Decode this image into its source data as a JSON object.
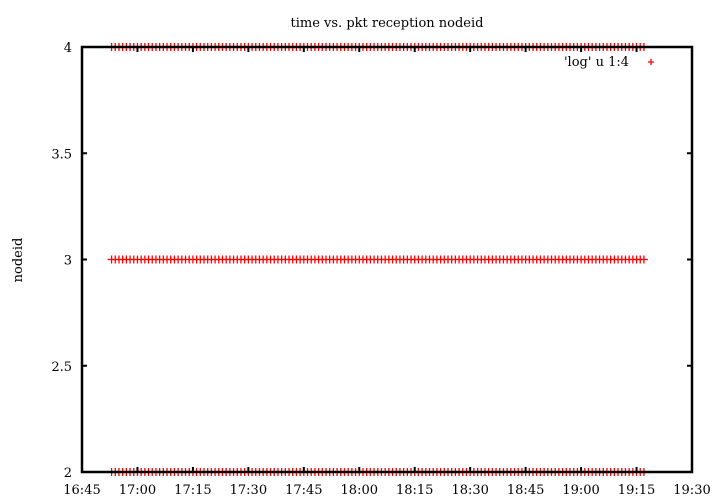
{
  "chart_data": {
    "type": "scatter",
    "title": "time vs. pkt reception nodeid",
    "xlabel": "",
    "ylabel": "nodeid",
    "x_ticks": [
      "16:45",
      "17:00",
      "17:15",
      "17:30",
      "17:45",
      "18:00",
      "18:15",
      "18:30",
      "18:45",
      "19:00",
      "19:15",
      "19:30"
    ],
    "y_ticks": [
      "2",
      "2.5",
      "3",
      "3.5",
      "4"
    ],
    "xlim": [
      "16:45",
      "19:30"
    ],
    "ylim": [
      2,
      4
    ],
    "grid": false,
    "legend_position": "top-right",
    "series": [
      {
        "name": "'log' u 1:4",
        "color": "#ff0000",
        "marker": "plus",
        "segments": [
          {
            "y": 4,
            "x_start": "16:53",
            "x_end": "19:17"
          },
          {
            "y": 3,
            "x_start": "16:53",
            "x_end": "19:17"
          },
          {
            "y": 2,
            "x_start": "16:53",
            "x_end": "19:17"
          }
        ]
      }
    ]
  }
}
